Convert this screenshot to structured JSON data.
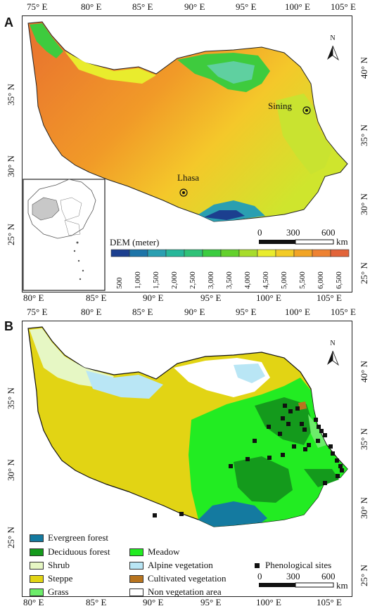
{
  "panel_a": {
    "letter": "A",
    "top_lon_labels": [
      "75° E",
      "80° E",
      "85° E",
      "90° E",
      "95° E",
      "100° E",
      "105° E"
    ],
    "bottom_lon_labels": [
      "80° E",
      "85° E",
      "90° E",
      "95° E",
      "100° E",
      "105° E"
    ],
    "left_lat_labels": [
      "35° N",
      "30° N",
      "25° N"
    ],
    "right_lat_labels": [
      "40° N",
      "35° N",
      "30° N",
      "25° N"
    ],
    "cities": [
      {
        "name": "Sining"
      },
      {
        "name": "Lhasa"
      }
    ],
    "north_label": "N",
    "scale": {
      "ticks": [
        "0",
        "300",
        "600"
      ],
      "unit": "km"
    },
    "dem_legend": {
      "title": "DEM (meter)",
      "ticks": [
        "500",
        "1,000",
        "1,500",
        "2,000",
        "2,500",
        "3,000",
        "3,500",
        "4,000",
        "4,500",
        "5,000",
        "5,500",
        "6,000",
        "6,500"
      ],
      "colors": [
        "#1c3f8f",
        "#1d74a8",
        "#2a9fb1",
        "#27b79a",
        "#2fc278",
        "#3bcc3f",
        "#63d12c",
        "#a7dc2b",
        "#e9ec2d",
        "#f3cb25",
        "#f2a424",
        "#ee8232",
        "#e2643a"
      ]
    }
  },
  "panel_b": {
    "letter": "B",
    "top_lon_labels": [
      "75° E",
      "80° E",
      "85° E",
      "90° E",
      "95° E",
      "100° E",
      "105° E"
    ],
    "bottom_lon_labels": [
      "80° E",
      "85° E",
      "90° E",
      "95° E",
      "100° E",
      "105° E"
    ],
    "left_lat_labels": [
      "35° N",
      "30° N",
      "25° N"
    ],
    "right_lat_labels": [
      "40° N",
      "35° N",
      "30° N",
      "25° N"
    ],
    "north_label": "N",
    "scale": {
      "ticks": [
        "0",
        "300",
        "600"
      ],
      "unit": "km"
    },
    "legend": [
      {
        "label": "Evergreen forest",
        "color": "#147aa0"
      },
      {
        "label": "Deciduous forest",
        "color": "#149a1c"
      },
      {
        "label": "Shrub",
        "color": "#e6f7c4"
      },
      {
        "label": "Steppe",
        "color": "#e2d414"
      },
      {
        "label": "Grass",
        "color": "#6cec6a"
      },
      {
        "label": "Meadow",
        "color": "#22ec22"
      },
      {
        "label": "Alpine vegetation",
        "color": "#b9e6f5"
      },
      {
        "label": "Cultivated vegetation",
        "color": "#b8741e"
      },
      {
        "label": "Non vegetation area",
        "color": "#ffffff"
      }
    ],
    "sites_label": "Phenological sites"
  }
}
